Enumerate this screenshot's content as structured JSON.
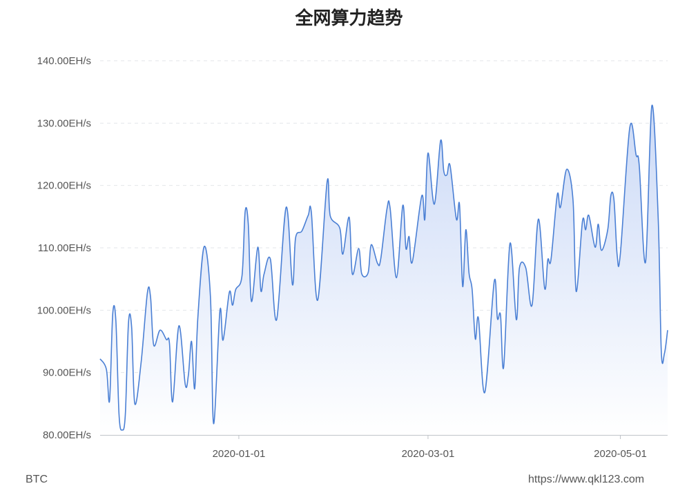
{
  "chart_data": {
    "type": "area",
    "title": "全网算力趋势",
    "xlabel": "",
    "ylabel": "",
    "ylim": [
      80,
      140
    ],
    "y_ticks": [
      "80.00EH/s",
      "90.00EH/s",
      "100.00EH/s",
      "110.00EH/s",
      "120.00EH/s",
      "130.00EH/s",
      "140.00EH/s"
    ],
    "y_tick_values": [
      80,
      90,
      100,
      110,
      120,
      130,
      140
    ],
    "x_ticks": [
      "2020-01-01",
      "2020-03-01",
      "2020-05-01"
    ],
    "xlim": [
      "2019-11-18",
      "2020-05-16"
    ],
    "grid": "horizontal dashed",
    "colors": {
      "line": "#4a7fd4",
      "fill_top": "#c9d8f6",
      "fill_bottom": "#ffffff",
      "grid": "#e3e6ea",
      "axis": "#bfc3c8"
    },
    "series": [
      {
        "points": [
          [
            "2019-11-18",
            92.2
          ],
          [
            "2019-11-20",
            90.5
          ],
          [
            "2019-11-21",
            85.5
          ],
          [
            "2019-11-22",
            99.4
          ],
          [
            "2019-11-23",
            98.3
          ],
          [
            "2019-11-24",
            83.3
          ],
          [
            "2019-11-25",
            80.8
          ],
          [
            "2019-11-26",
            83.3
          ],
          [
            "2019-11-27",
            98.0
          ],
          [
            "2019-11-28",
            97.3
          ],
          [
            "2019-11-29",
            85.0
          ],
          [
            "2019-12-01",
            91.6
          ],
          [
            "2019-12-03",
            102.8
          ],
          [
            "2019-12-04",
            102.1
          ],
          [
            "2019-12-05",
            94.4
          ],
          [
            "2019-12-07",
            96.8
          ],
          [
            "2019-12-09",
            95.3
          ],
          [
            "2019-12-10",
            94.7
          ],
          [
            "2019-12-11",
            85.3
          ],
          [
            "2019-12-13",
            97.5
          ],
          [
            "2019-12-15",
            88.1
          ],
          [
            "2019-12-16",
            89.6
          ],
          [
            "2019-12-17",
            95.0
          ],
          [
            "2019-12-18",
            87.4
          ],
          [
            "2019-12-19",
            98.8
          ],
          [
            "2019-12-21",
            110.2
          ],
          [
            "2019-12-23",
            102.1
          ],
          [
            "2019-12-24",
            81.8
          ],
          [
            "2019-12-26",
            99.9
          ],
          [
            "2019-12-27",
            95.2
          ],
          [
            "2019-12-29",
            102.9
          ],
          [
            "2019-12-30",
            100.8
          ],
          [
            "2019-12-31",
            103.3
          ],
          [
            "2020-01-02",
            105.5
          ],
          [
            "2020-01-03",
            115.8
          ],
          [
            "2020-01-04",
            113.8
          ],
          [
            "2020-01-05",
            101.4
          ],
          [
            "2020-01-07",
            110.1
          ],
          [
            "2020-01-08",
            103.1
          ],
          [
            "2020-01-09",
            105.8
          ],
          [
            "2020-01-11",
            108.2
          ],
          [
            "2020-01-13",
            98.5
          ],
          [
            "2020-01-16",
            116.5
          ],
          [
            "2020-01-18",
            104.1
          ],
          [
            "2020-01-19",
            111.6
          ],
          [
            "2020-01-21",
            112.7
          ],
          [
            "2020-01-23",
            115.2
          ],
          [
            "2020-01-24",
            115.7
          ],
          [
            "2020-01-26",
            101.6
          ],
          [
            "2020-01-29",
            120.6
          ],
          [
            "2020-01-30",
            115.1
          ],
          [
            "2020-02-02",
            113.2
          ],
          [
            "2020-02-03",
            109.0
          ],
          [
            "2020-02-05",
            114.9
          ],
          [
            "2020-02-06",
            105.8
          ],
          [
            "2020-02-08",
            109.9
          ],
          [
            "2020-02-09",
            105.8
          ],
          [
            "2020-02-11",
            106.0
          ],
          [
            "2020-02-12",
            110.5
          ],
          [
            "2020-02-14",
            107.5
          ],
          [
            "2020-02-15",
            108.2
          ],
          [
            "2020-02-17",
            116.3
          ],
          [
            "2020-02-18",
            116.3
          ],
          [
            "2020-02-20",
            105.2
          ],
          [
            "2020-02-22",
            116.8
          ],
          [
            "2020-02-23",
            109.9
          ],
          [
            "2020-02-24",
            111.8
          ],
          [
            "2020-02-25",
            107.7
          ],
          [
            "2020-02-28",
            118.3
          ],
          [
            "2020-02-29",
            114.6
          ],
          [
            "2020-03-01",
            125.2
          ],
          [
            "2020-03-03",
            117.0
          ],
          [
            "2020-03-05",
            127.2
          ],
          [
            "2020-03-06",
            122.3
          ],
          [
            "2020-03-07",
            121.7
          ],
          [
            "2020-03-08",
            123.2
          ],
          [
            "2020-03-10",
            114.6
          ],
          [
            "2020-03-11",
            116.9
          ],
          [
            "2020-03-12",
            103.8
          ],
          [
            "2020-03-13",
            112.9
          ],
          [
            "2020-03-14",
            106.0
          ],
          [
            "2020-03-15",
            103.3
          ],
          [
            "2020-03-16",
            95.4
          ],
          [
            "2020-03-17",
            98.7
          ],
          [
            "2020-03-19",
            86.8
          ],
          [
            "2020-03-22",
            104.6
          ],
          [
            "2020-03-23",
            98.7
          ],
          [
            "2020-03-24",
            99.2
          ],
          [
            "2020-03-25",
            90.9
          ],
          [
            "2020-03-27",
            110.7
          ],
          [
            "2020-03-29",
            98.5
          ],
          [
            "2020-03-30",
            106.8
          ],
          [
            "2020-04-01",
            106.8
          ],
          [
            "2020-04-03",
            100.8
          ],
          [
            "2020-04-05",
            114.6
          ],
          [
            "2020-04-07",
            103.5
          ],
          [
            "2020-04-08",
            108.1
          ],
          [
            "2020-04-09",
            108.1
          ],
          [
            "2020-04-11",
            118.5
          ],
          [
            "2020-04-12",
            116.5
          ],
          [
            "2020-04-14",
            122.6
          ],
          [
            "2020-04-16",
            117.6
          ],
          [
            "2020-04-17",
            103.0
          ],
          [
            "2020-04-19",
            114.3
          ],
          [
            "2020-04-20",
            112.9
          ],
          [
            "2020-04-21",
            115.2
          ],
          [
            "2020-04-23",
            110.1
          ],
          [
            "2020-04-24",
            113.8
          ],
          [
            "2020-04-25",
            109.6
          ],
          [
            "2020-04-27",
            112.9
          ],
          [
            "2020-04-28",
            118.4
          ],
          [
            "2020-04-29",
            117.6
          ],
          [
            "2020-04-30",
            108.8
          ],
          [
            "2020-05-01",
            109.0
          ],
          [
            "2020-05-04",
            129.3
          ],
          [
            "2020-05-06",
            124.9
          ],
          [
            "2020-05-07",
            123.2
          ],
          [
            "2020-05-09",
            107.7
          ],
          [
            "2020-05-11",
            132.8
          ],
          [
            "2020-05-13",
            114.9
          ],
          [
            "2020-05-14",
            93.3
          ],
          [
            "2020-05-15",
            93.1
          ],
          [
            "2020-05-16",
            96.8
          ]
        ]
      }
    ]
  },
  "footer": {
    "left": "BTC",
    "right": "https://www.qkl123.com"
  }
}
